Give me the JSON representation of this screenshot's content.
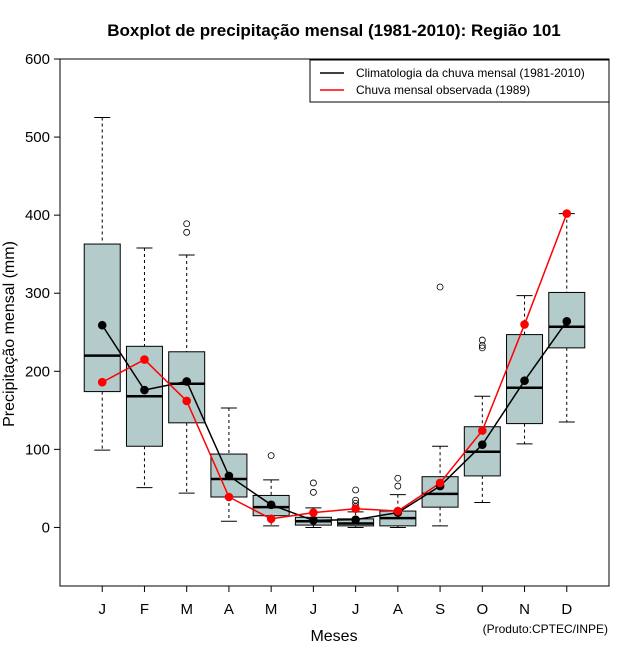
{
  "chart_data": {
    "type": "boxplot",
    "title": "Boxplot de precipitação mensal (1981-2010): Região 101",
    "xlabel": "Meses",
    "ylabel": "Precipitação mensal (mm)",
    "ylim": [
      -75,
      600
    ],
    "yticks": [
      0,
      100,
      200,
      300,
      400,
      500,
      600
    ],
    "categories": [
      "J",
      "F",
      "M",
      "A",
      "M",
      "J",
      "J",
      "A",
      "S",
      "O",
      "N",
      "D"
    ],
    "boxes": [
      {
        "whisker_low": 99,
        "q1": 174,
        "median": 220,
        "q3": 363,
        "whisker_high": 525,
        "outliers": []
      },
      {
        "whisker_low": 51,
        "q1": 104,
        "median": 168,
        "q3": 232,
        "whisker_high": 358,
        "outliers": []
      },
      {
        "whisker_low": 44,
        "q1": 134,
        "median": 184,
        "q3": 225,
        "whisker_high": 349,
        "outliers": [
          378,
          389
        ]
      },
      {
        "whisker_low": 8,
        "q1": 39,
        "median": 62,
        "q3": 94,
        "whisker_high": 153,
        "outliers": []
      },
      {
        "whisker_low": 2,
        "q1": 15,
        "median": 26,
        "q3": 41,
        "whisker_high": 61,
        "outliers": [
          92
        ]
      },
      {
        "whisker_low": 0,
        "q1": 3,
        "median": 8,
        "q3": 13,
        "whisker_high": 25,
        "outliers": [
          45,
          57
        ]
      },
      {
        "whisker_low": 0,
        "q1": 2,
        "median": 5,
        "q3": 11,
        "whisker_high": 20,
        "outliers": [
          27,
          31,
          35,
          48
        ]
      },
      {
        "whisker_low": 0,
        "q1": 2,
        "median": 12,
        "q3": 21,
        "whisker_high": 42,
        "outliers": [
          53,
          63
        ]
      },
      {
        "whisker_low": 2,
        "q1": 26,
        "median": 43,
        "q3": 65,
        "whisker_high": 104,
        "outliers": [
          308
        ]
      },
      {
        "whisker_low": 32,
        "q1": 66,
        "median": 97,
        "q3": 129,
        "whisker_high": 168,
        "outliers": [
          230,
          233,
          240
        ]
      },
      {
        "whisker_low": 107,
        "q1": 133,
        "median": 179,
        "q3": 247,
        "whisker_high": 297,
        "outliers": []
      },
      {
        "whisker_low": 135,
        "q1": 230,
        "median": 257,
        "q3": 301,
        "whisker_high": 402,
        "outliers": []
      }
    ],
    "series": [
      {
        "name": "Climatologia da chuva mensal (1981-2010)",
        "color": "#000000",
        "values": [
          259,
          176,
          187,
          66,
          29,
          9,
          10,
          19,
          53,
          106,
          188,
          264
        ]
      },
      {
        "name": "Chuva mensal observada (1989)",
        "color": "#ff0000",
        "values": [
          186,
          215,
          162,
          39,
          11,
          19,
          24,
          21,
          57,
          124,
          260,
          402
        ]
      }
    ],
    "box_color": "#b3cbcb",
    "legend_position": "top-right",
    "credit": "(Produto:CPTEC/INPE)"
  }
}
